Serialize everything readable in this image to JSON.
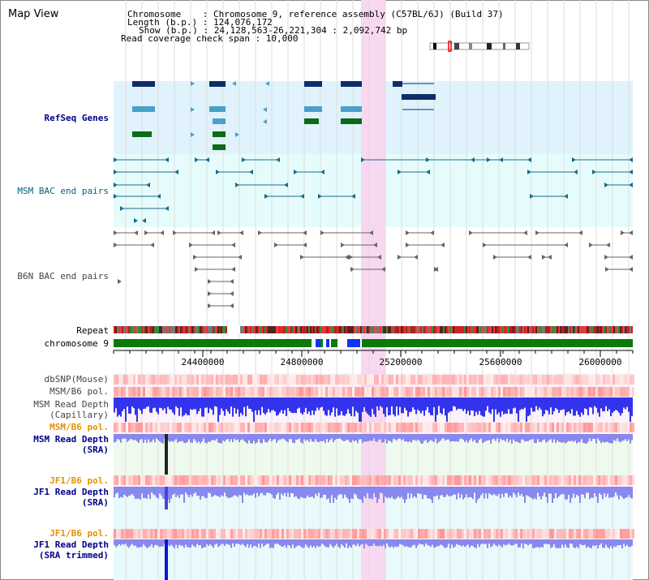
{
  "window": {
    "title": "Map View"
  },
  "info": {
    "chromosome_line": "Chromosome    : Chromosome 9, reference assembly (C57BL/6J) (Build 37)",
    "length_line": "Length (b.p.) : 124,076,172",
    "show_line": "Show (b.p.) : 24,128,563-26,221,304 : 2,092,742 bp",
    "coverage_line": "Read coverage check span : 10,000"
  },
  "tracks": {
    "refseq": "RefSeq Genes",
    "msm_bac": "MSM BAC end pairs",
    "b6n_bac": "B6N BAC end pairs",
    "repeat": "Repeat",
    "chromosome": "chromosome 9",
    "dbsnp": "dbSNP(Mouse)",
    "msm_b6_pol_1": "MSM/B6 pol.",
    "msm_depth_cap_1": "MSM Read Depth",
    "msm_depth_cap_2": "(Capillary)",
    "msm_b6_pol_2": "MSM/B6 pol.",
    "msm_depth_sra_1": "MSM Read Depth",
    "msm_depth_sra_2": "(SRA)",
    "jf1_b6_pol_1": "JF1/B6 pol.",
    "jf1_depth_sra_1": "JF1 Read Depth",
    "jf1_depth_sra_2": "(SRA)",
    "jf1_b6_pol_2": "JF1/B6 pol.",
    "jf1_depth_trim_1": "JF1 Read Depth",
    "jf1_depth_trim_2": "(SRA trimmed)"
  },
  "axis": {
    "ticks": [
      "24400000",
      "24800000",
      "25200000",
      "25600000",
      "26000000"
    ]
  },
  "colors": {
    "refseq_bg": "#e0f2fc",
    "msm_bg": "#e6fcfc",
    "highlight": "#f8d8f0",
    "gene_dark": "#0d2d6b",
    "gene_mid": "#4aa0c8",
    "gene_green": "#0a6b14",
    "bac_teal": "#1a6b8a",
    "bac_gray": "#666666",
    "chrom_green": "#0a7a0a",
    "depth_blue": "#2222ee",
    "depth_light": "#8888ee",
    "pol_red": "#ff6666"
  }
}
